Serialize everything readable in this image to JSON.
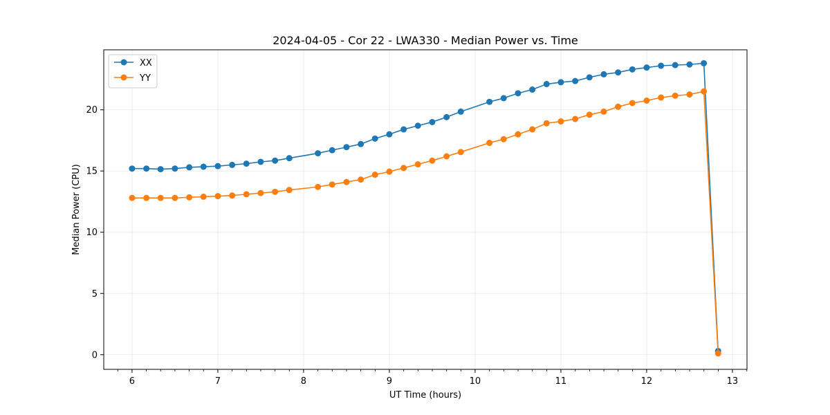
{
  "chart_data": {
    "type": "line",
    "title": "2024-04-05 - Cor 22 - LWA330 - Median Power vs. Time",
    "xlabel": "UT Time (hours)",
    "ylabel": "Median Power (CPU)",
    "xlim": [
      5.67,
      13.17
    ],
    "ylim": [
      -1.2,
      24.9
    ],
    "xticks": [
      6,
      7,
      8,
      9,
      10,
      11,
      12,
      13
    ],
    "xtick_labels": [
      "6",
      "7",
      "8",
      "9",
      "10",
      "11",
      "12",
      "13"
    ],
    "yticks": [
      0,
      5,
      10,
      15,
      20
    ],
    "ytick_labels": [
      "0",
      "5",
      "10",
      "15",
      "20"
    ],
    "x_minor_step": 0.1667,
    "grid": true,
    "legend_position": "top-left",
    "series": [
      {
        "name": "XX",
        "color": "#1f77b4",
        "x": [
          6.0,
          6.167,
          6.333,
          6.5,
          6.667,
          6.833,
          7.0,
          7.167,
          7.333,
          7.5,
          7.667,
          7.833,
          8.167,
          8.333,
          8.5,
          8.667,
          8.833,
          9.0,
          9.167,
          9.333,
          9.5,
          9.667,
          9.833,
          10.167,
          10.333,
          10.5,
          10.667,
          10.833,
          11.0,
          11.167,
          11.333,
          11.5,
          11.667,
          11.833,
          12.0,
          12.167,
          12.333,
          12.5,
          12.667,
          12.833
        ],
        "y": [
          15.2,
          15.2,
          15.15,
          15.2,
          15.3,
          15.35,
          15.4,
          15.5,
          15.6,
          15.75,
          15.85,
          16.05,
          16.45,
          16.7,
          16.95,
          17.2,
          17.65,
          18.0,
          18.4,
          18.7,
          19.0,
          19.4,
          19.85,
          20.65,
          20.95,
          21.35,
          21.65,
          22.1,
          22.25,
          22.35,
          22.65,
          22.9,
          23.05,
          23.3,
          23.45,
          23.6,
          23.65,
          23.7,
          23.8,
          0.3
        ]
      },
      {
        "name": "YY",
        "color": "#ff7f0e",
        "x": [
          6.0,
          6.167,
          6.333,
          6.5,
          6.667,
          6.833,
          7.0,
          7.167,
          7.333,
          7.5,
          7.667,
          7.833,
          8.167,
          8.333,
          8.5,
          8.667,
          8.833,
          9.0,
          9.167,
          9.333,
          9.5,
          9.667,
          9.833,
          10.167,
          10.333,
          10.5,
          10.667,
          10.833,
          11.0,
          11.167,
          11.333,
          11.5,
          11.667,
          11.833,
          12.0,
          12.167,
          12.333,
          12.5,
          12.667,
          12.833
        ],
        "y": [
          12.8,
          12.8,
          12.8,
          12.8,
          12.85,
          12.9,
          12.95,
          13.0,
          13.1,
          13.2,
          13.3,
          13.45,
          13.7,
          13.9,
          14.1,
          14.3,
          14.7,
          14.95,
          15.25,
          15.55,
          15.85,
          16.2,
          16.55,
          17.3,
          17.6,
          18.0,
          18.4,
          18.9,
          19.05,
          19.25,
          19.6,
          19.85,
          20.25,
          20.55,
          20.75,
          21.0,
          21.15,
          21.25,
          21.5,
          0.1
        ]
      }
    ]
  }
}
